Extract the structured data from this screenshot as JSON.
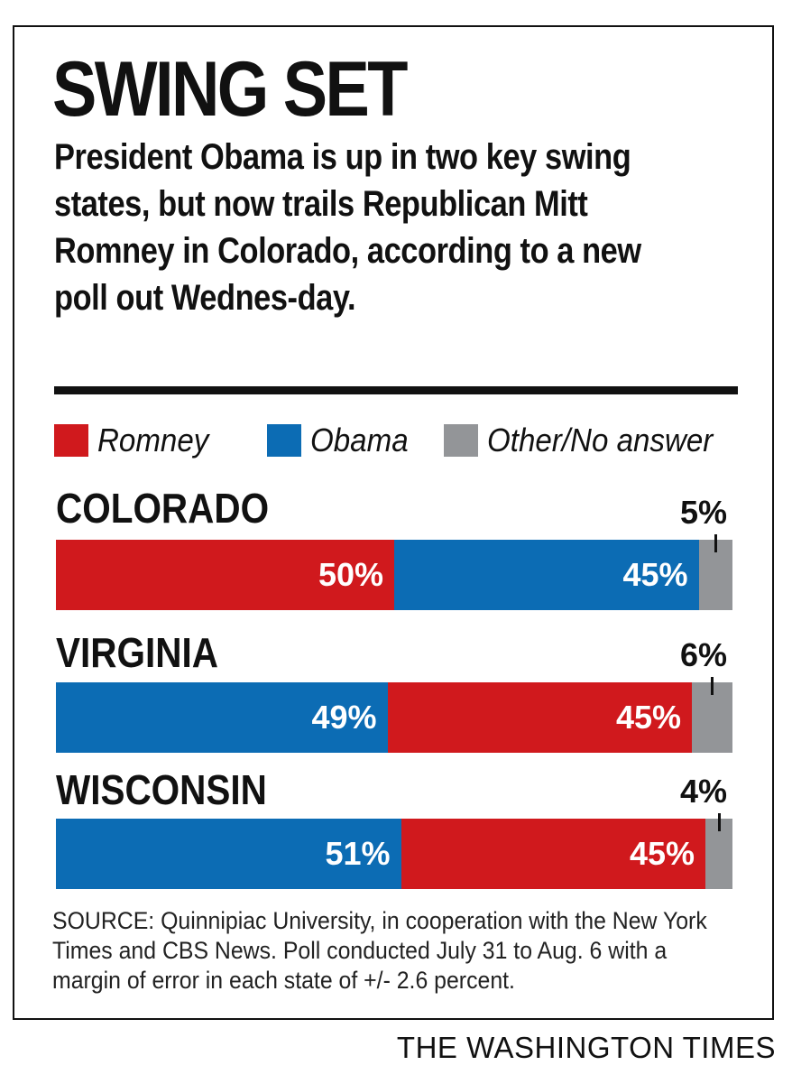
{
  "header": {
    "title": "SWING SET",
    "subtitle": "President Obama is up in two key swing states, but now trails Republican Mitt Romney in Colorado, according to a new poll out Wednes-day."
  },
  "colors": {
    "romney": "#d0191d",
    "obama": "#0c6cb4",
    "other": "#939598"
  },
  "legend": [
    {
      "key": "romney",
      "label": "Romney"
    },
    {
      "key": "obama",
      "label": "Obama"
    },
    {
      "key": "other",
      "label": "Other/No answer"
    }
  ],
  "chart_data": {
    "type": "bar",
    "orientation": "horizontal-stacked",
    "unit": "%",
    "xlim": [
      0,
      100
    ],
    "grid": false,
    "legend_position": "top",
    "categories": [
      "COLORADO",
      "VIRGINIA",
      "WISCONSIN"
    ],
    "rows": [
      {
        "state": "COLORADO",
        "segments": [
          {
            "key": "romney",
            "value": 50,
            "label": "50%"
          },
          {
            "key": "obama",
            "value": 45,
            "label": "45%"
          },
          {
            "key": "other",
            "value": 5,
            "label": "5%"
          }
        ]
      },
      {
        "state": "VIRGINIA",
        "segments": [
          {
            "key": "obama",
            "value": 49,
            "label": "49%"
          },
          {
            "key": "romney",
            "value": 45,
            "label": "45%"
          },
          {
            "key": "other",
            "value": 6,
            "label": "6%"
          }
        ]
      },
      {
        "state": "WISCONSIN",
        "segments": [
          {
            "key": "obama",
            "value": 51,
            "label": "51%"
          },
          {
            "key": "romney",
            "value": 45,
            "label": "45%"
          },
          {
            "key": "other",
            "value": 4,
            "label": "4%"
          }
        ]
      }
    ],
    "series": [
      {
        "name": "Romney",
        "values": [
          50,
          45,
          45
        ]
      },
      {
        "name": "Obama",
        "values": [
          45,
          49,
          51
        ]
      },
      {
        "name": "Other/No answer",
        "values": [
          5,
          6,
          4
        ]
      }
    ]
  },
  "footer": {
    "source": "SOURCE: Quinnipiac University, in cooperation with the New York Times and CBS News. Poll conducted July 31 to Aug. 6 with a margin of error in each state of +/- 2.6 percent.",
    "credit": "THE WASHINGTON TIMES"
  }
}
